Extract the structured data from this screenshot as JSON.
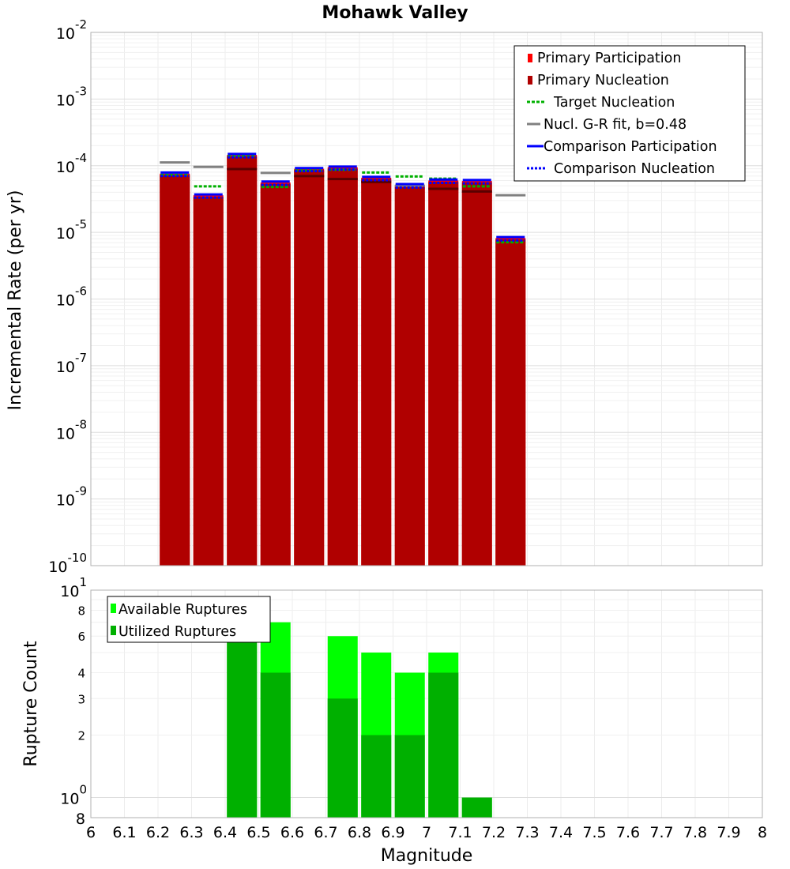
{
  "chart_data": [
    {
      "type": "bar",
      "title": "Mohawk Valley",
      "xlabel": "",
      "ylabel": "Incremental Rate (per yr)",
      "xlim": [
        6,
        8
      ],
      "ylim": [
        1e-10,
        0.01
      ],
      "yscale": "log",
      "grid": true,
      "legend_placement": "top-right",
      "yticks": [
        "10^-10",
        "10^-9",
        "10^-8",
        "10^-7",
        "10^-6",
        "10^-5",
        "10^-4",
        "10^-3",
        "10^-2"
      ],
      "x": [
        6.25,
        6.35,
        6.45,
        6.55,
        6.65,
        6.75,
        6.85,
        6.95,
        7.05,
        7.15,
        7.25
      ],
      "series": [
        {
          "name": "Primary Participation",
          "color": "#ff0000",
          "values": [
            7.6e-05,
            3.6e-05,
            0.000145,
            5.6e-05,
            9e-05,
            9.5e-05,
            6.6e-05,
            5.1e-05,
            6e-05,
            5.9e-05,
            8.2e-06
          ]
        },
        {
          "name": "Primary Nucleation",
          "color": "#b00000",
          "values": [
            7.2e-05,
            3.4e-05,
            0.000138,
            5.3e-05,
            8.6e-05,
            9e-05,
            6.3e-05,
            4.8e-05,
            5.7e-05,
            5.6e-05,
            7.8e-06
          ]
        },
        {
          "name": "Target Nucleation",
          "color": "#00b000",
          "values": [
            7.3e-05,
            4.9e-05,
            0.00014,
            4.8e-05,
            8.5e-05,
            8.7e-05,
            7.9e-05,
            6.9e-05,
            6.4e-05,
            4.9e-05,
            7.1e-06
          ]
        },
        {
          "name": "Nucl. G-R fit, b=0.48",
          "color": "#808080",
          "values": [
            0.000112,
            9.6e-05,
            8.9e-05,
            7.8e-05,
            7e-05,
            6.3e-05,
            5.7e-05,
            5e-05,
            4.5e-05,
            4.1e-05,
            3.6e-05
          ]
        },
        {
          "name": "Comparison Participation",
          "color": "#0000ff",
          "values": [
            7.9e-05,
            3.7e-05,
            0.00015,
            5.8e-05,
            9.2e-05,
            9.7e-05,
            6.8e-05,
            5.3e-05,
            6.2e-05,
            6.1e-05,
            8.5e-06
          ]
        },
        {
          "name": "Comparison Nucleation",
          "color": "#0000ff",
          "values": [
            7.6e-05,
            3.6e-05,
            0.000145,
            5.6e-05,
            9e-05,
            9.5e-05,
            6.6e-05,
            5.1e-05,
            6e-05,
            5.9e-05,
            8.2e-06
          ]
        }
      ]
    },
    {
      "type": "bar",
      "xlabel": "Magnitude",
      "ylabel": "Rupture Count",
      "xlim": [
        6,
        8
      ],
      "ylim": [
        0.8,
        10
      ],
      "yscale": "log",
      "grid": true,
      "legend_placement": "top-left",
      "yticks": [
        "8",
        "10^0",
        "2",
        "3",
        "4",
        "6",
        "8",
        "10^1"
      ],
      "xticks": [
        "6",
        "6.1",
        "6.2",
        "6.3",
        "6.4",
        "6.5",
        "6.6",
        "6.7",
        "6.8",
        "6.9",
        "7",
        "7.1",
        "7.2",
        "7.3",
        "7.4",
        "7.5",
        "7.6",
        "7.7",
        "7.8",
        "7.9",
        "8"
      ],
      "x": [
        6.45,
        6.55,
        6.75,
        6.85,
        6.95,
        7.05,
        7.15
      ],
      "series": [
        {
          "name": "Available Ruptures",
          "color": "#00ff00",
          "values": [
            8,
            7,
            6,
            5,
            4,
            5,
            1
          ]
        },
        {
          "name": "Utilized Ruptures",
          "color": "#00b000",
          "values": [
            8,
            4,
            3,
            2,
            2,
            4,
            1
          ]
        }
      ]
    }
  ]
}
